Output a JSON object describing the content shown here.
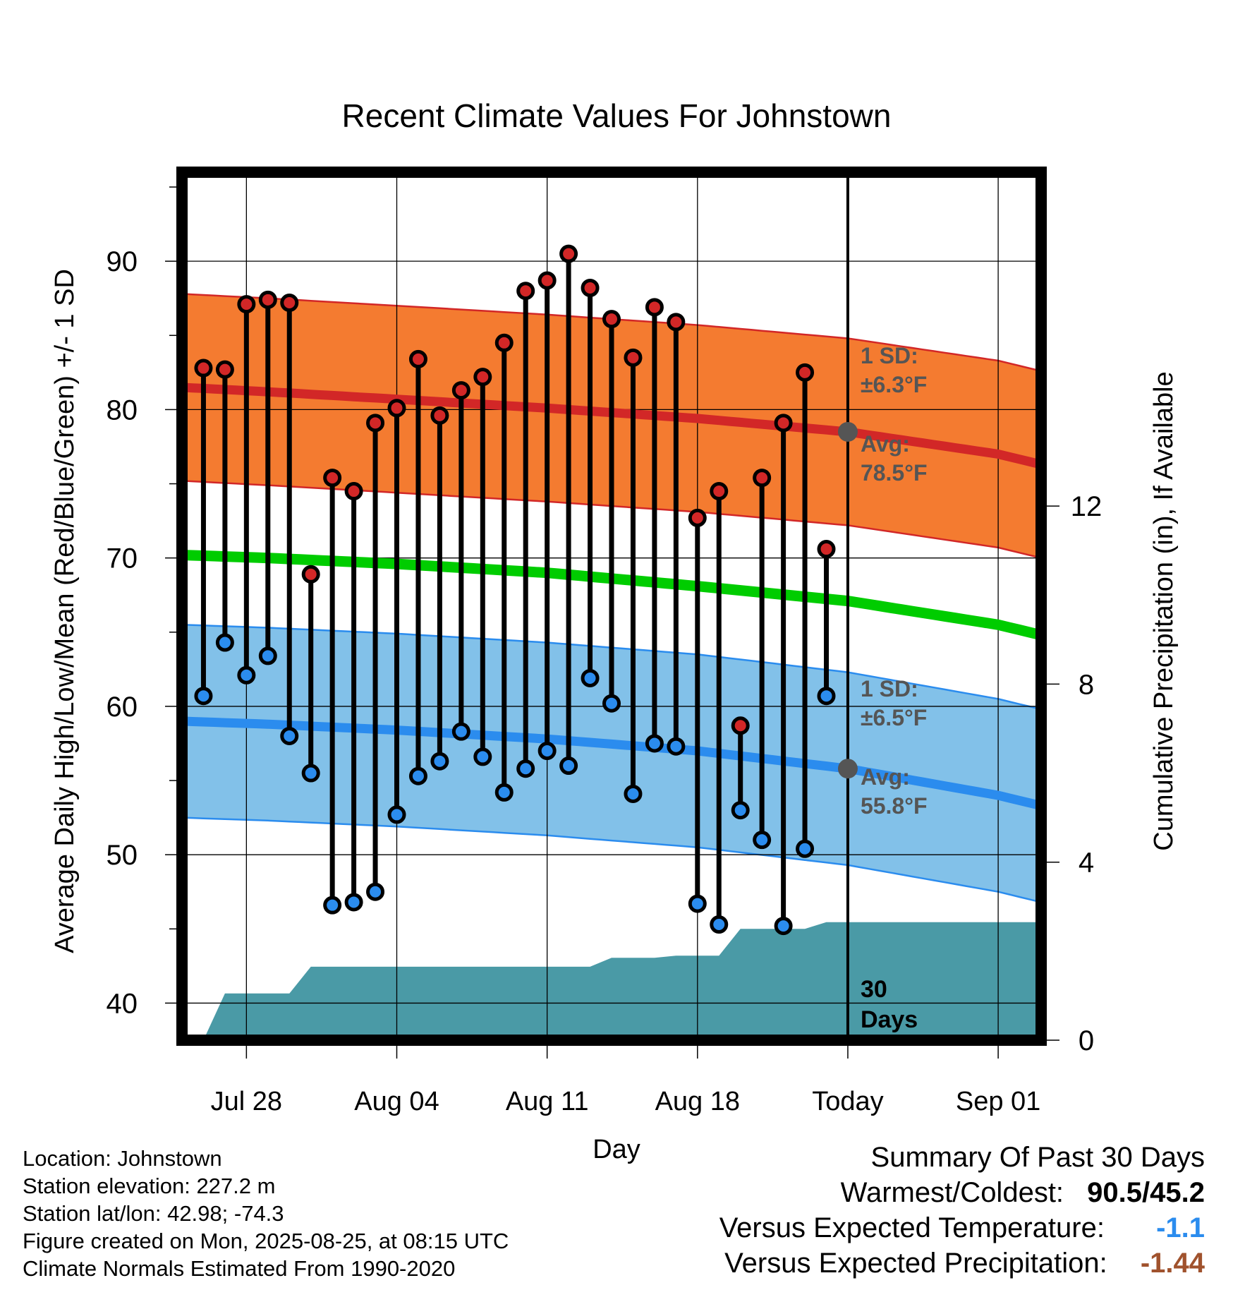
{
  "chart_data": {
    "type": "line",
    "title": "Recent Climate Values For Johnstown",
    "xlabel": "Day",
    "ylabel": "Average Daily High/Low/Mean (Red/Blue/Green) +/- 1 SD",
    "y2label": "Cumulative Precipitation (in), If Available",
    "ylim": [
      37.5,
      96
    ],
    "y2lim": [
      0,
      19.5
    ],
    "yticks": [
      40,
      50,
      60,
      70,
      80,
      90
    ],
    "y2ticks": [
      0,
      4,
      8,
      12
    ],
    "grid": true,
    "x_range_days": [
      "2025-07-25",
      "2025-09-03"
    ],
    "x_ticks": [
      {
        "date": "2025-07-28",
        "label": "Jul 28"
      },
      {
        "date": "2025-08-04",
        "label": "Aug 04"
      },
      {
        "date": "2025-08-11",
        "label": "Aug 11"
      },
      {
        "date": "2025-08-18",
        "label": "Aug 18"
      },
      {
        "date": "2025-08-25",
        "label": "Today"
      },
      {
        "date": "2025-09-01",
        "label": "Sep 01"
      }
    ],
    "today": "2025-08-25",
    "window_label": "30 Days",
    "normals": {
      "x": [
        "2025-07-25",
        "2025-07-29",
        "2025-08-04",
        "2025-08-11",
        "2025-08-18",
        "2025-08-25",
        "2025-09-01",
        "2025-09-03"
      ],
      "high_avg": [
        81.5,
        81.2,
        80.7,
        80.1,
        79.4,
        78.5,
        77.0,
        76.3
      ],
      "low_avg": [
        59.0,
        58.8,
        58.4,
        57.8,
        57.0,
        55.8,
        54.0,
        53.3
      ],
      "mean_avg": [
        70.2,
        70.0,
        69.6,
        69.0,
        68.1,
        67.1,
        65.5,
        64.8
      ],
      "high_sd": 6.3,
      "low_sd": 6.5
    },
    "series": [
      {
        "name": "High",
        "x": [
          "2025-07-26",
          "2025-07-27",
          "2025-07-28",
          "2025-07-29",
          "2025-07-30",
          "2025-07-31",
          "2025-08-01",
          "2025-08-02",
          "2025-08-03",
          "2025-08-04",
          "2025-08-05",
          "2025-08-06",
          "2025-08-07",
          "2025-08-08",
          "2025-08-09",
          "2025-08-10",
          "2025-08-11",
          "2025-08-12",
          "2025-08-13",
          "2025-08-14",
          "2025-08-15",
          "2025-08-16",
          "2025-08-17",
          "2025-08-18",
          "2025-08-19",
          "2025-08-20",
          "2025-08-21",
          "2025-08-22",
          "2025-08-23",
          "2025-08-24"
        ],
        "values": [
          82.8,
          82.7,
          87.1,
          87.4,
          87.2,
          68.9,
          75.4,
          74.5,
          79.1,
          80.1,
          83.4,
          79.6,
          81.3,
          82.2,
          84.5,
          88.0,
          88.7,
          90.5,
          88.2,
          86.1,
          83.5,
          86.9,
          85.9,
          72.7,
          74.5,
          58.7,
          75.4,
          79.1,
          82.5,
          70.6
        ]
      },
      {
        "name": "Low",
        "x": [
          "2025-07-26",
          "2025-07-27",
          "2025-07-28",
          "2025-07-29",
          "2025-07-30",
          "2025-07-31",
          "2025-08-01",
          "2025-08-02",
          "2025-08-03",
          "2025-08-04",
          "2025-08-05",
          "2025-08-06",
          "2025-08-07",
          "2025-08-08",
          "2025-08-09",
          "2025-08-10",
          "2025-08-11",
          "2025-08-12",
          "2025-08-13",
          "2025-08-14",
          "2025-08-15",
          "2025-08-16",
          "2025-08-17",
          "2025-08-18",
          "2025-08-19",
          "2025-08-20",
          "2025-08-21",
          "2025-08-22",
          "2025-08-23",
          "2025-08-24"
        ],
        "values": [
          60.7,
          64.3,
          62.1,
          63.4,
          58.0,
          55.5,
          46.6,
          46.8,
          47.5,
          52.7,
          55.3,
          56.3,
          58.3,
          56.6,
          54.2,
          55.8,
          57.0,
          56.0,
          61.9,
          60.2,
          54.1,
          57.5,
          57.3,
          46.7,
          45.3,
          53.0,
          51.0,
          45.2,
          50.4,
          60.7
        ]
      }
    ],
    "precip": {
      "x": [
        "2025-07-26",
        "2025-07-27",
        "2025-07-28",
        "2025-07-29",
        "2025-07-30",
        "2025-07-31",
        "2025-08-01",
        "2025-08-02",
        "2025-08-03",
        "2025-08-04",
        "2025-08-05",
        "2025-08-06",
        "2025-08-07",
        "2025-08-08",
        "2025-08-09",
        "2025-08-10",
        "2025-08-11",
        "2025-08-12",
        "2025-08-13",
        "2025-08-14",
        "2025-08-15",
        "2025-08-16",
        "2025-08-17",
        "2025-08-18",
        "2025-08-19",
        "2025-08-20",
        "2025-08-21",
        "2025-08-22",
        "2025-08-23",
        "2025-08-24",
        "2025-08-25",
        "2025-09-03"
      ],
      "values": [
        0.0,
        1.05,
        1.05,
        1.05,
        1.05,
        1.65,
        1.65,
        1.65,
        1.65,
        1.65,
        1.65,
        1.65,
        1.65,
        1.65,
        1.65,
        1.65,
        1.65,
        1.65,
        1.65,
        1.85,
        1.85,
        1.85,
        1.9,
        1.9,
        1.9,
        2.5,
        2.5,
        2.5,
        2.5,
        2.65,
        2.65,
        2.65
      ]
    },
    "annotations": {
      "high_sd_label": "1 SD:",
      "high_sd_value": "±6.3°F",
      "high_avg_label": "Avg:",
      "high_avg_value": "78.5°F",
      "low_sd_label": "1 SD:",
      "low_sd_value": "±6.5°F",
      "low_avg_label": "Avg:",
      "low_avg_value": "55.8°F"
    },
    "colors": {
      "high_band": "#f47b30",
      "high_line": "#d22727",
      "low_band": "#82c1e9",
      "low_line": "#2b8cee",
      "mean_line": "#00cc00",
      "precip": "#4a9aa6",
      "high_marker": "#d22727",
      "low_marker": "#2b8cee",
      "annotation_text": "#555555"
    }
  },
  "info": {
    "location": "Location: Johnstown",
    "elevation": "Station elevation: 227.2 m",
    "latlon": "Station lat/lon: 42.98; -74.3",
    "created": "Figure created on Mon, 2025-08-25, at 08:15 UTC",
    "normals": "Climate Normals Estimated From 1990-2020"
  },
  "summary": {
    "title": "Summary Of Past 30 Days",
    "warm_cold_label": "Warmest/Coldest:",
    "warm_cold_value": "90.5/45.2",
    "temp_label": "Versus Expected Temperature:",
    "temp_value": "-1.1",
    "temp_color": "#2b8cee",
    "precip_label": "Versus Expected Precipitation:",
    "precip_value": "-1.44",
    "precip_color": "#a0522d"
  }
}
